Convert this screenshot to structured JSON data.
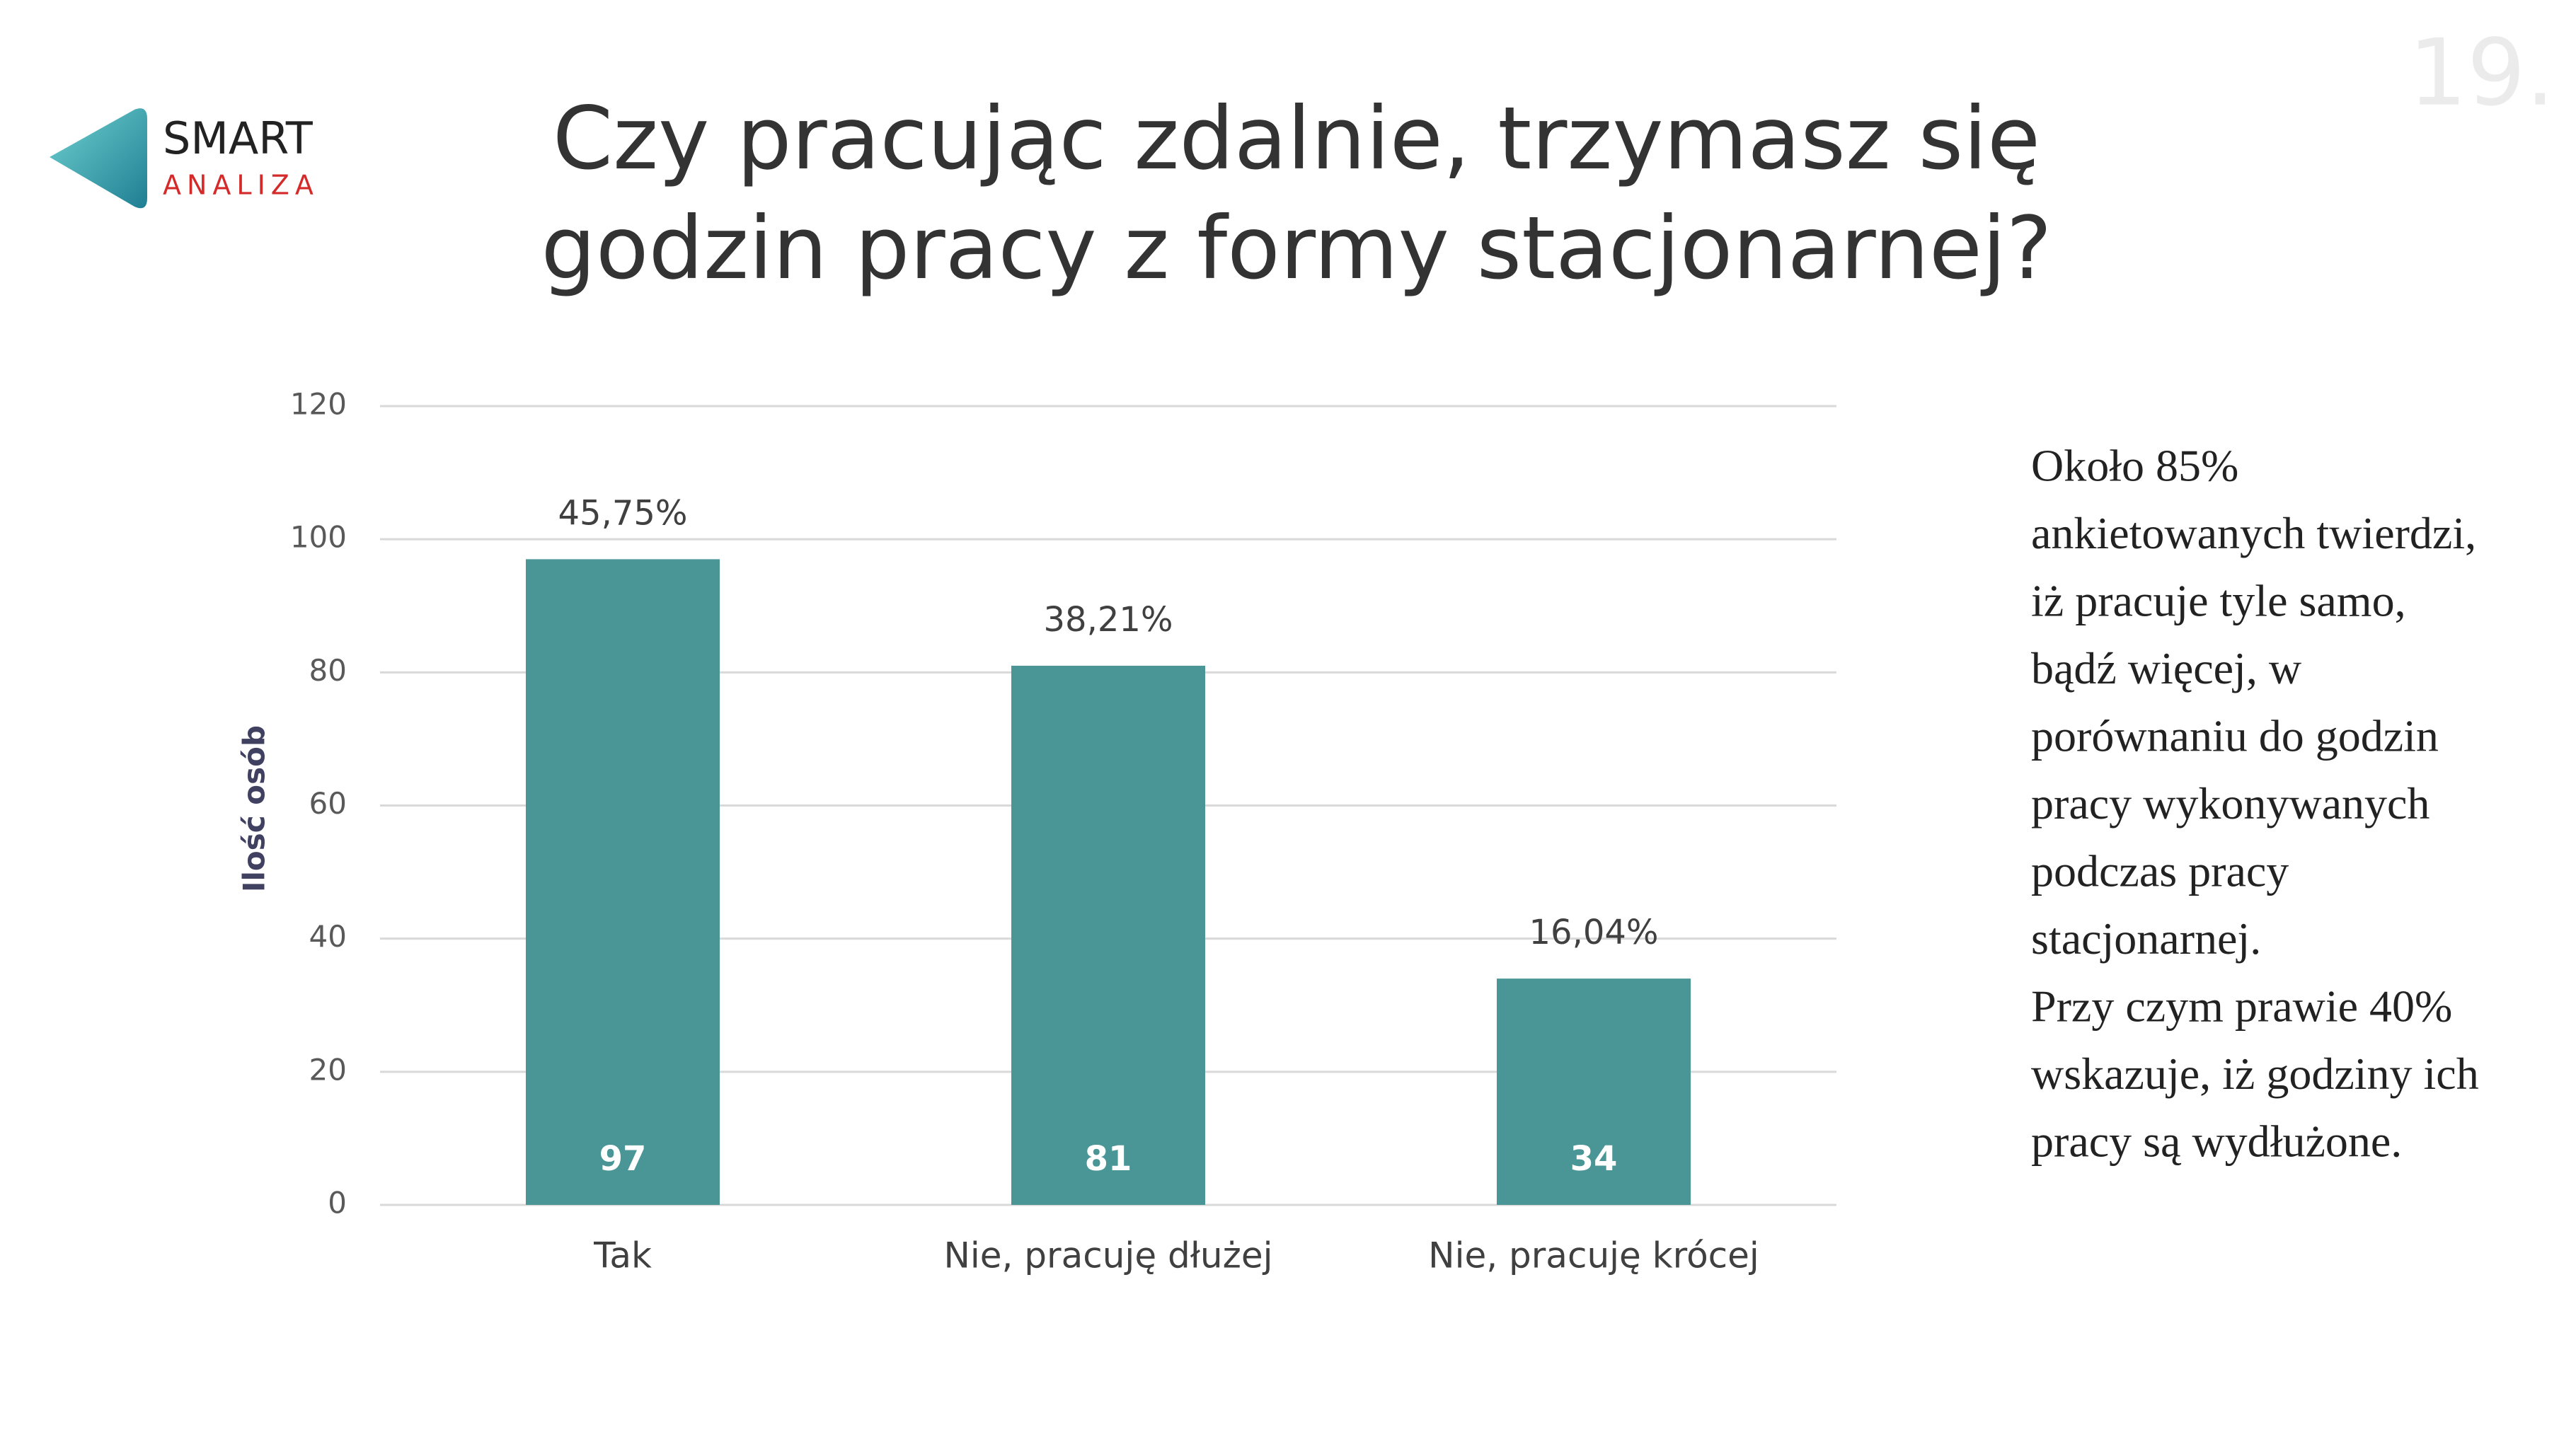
{
  "page_number": "19.",
  "logo": {
    "name": "SMART",
    "subname": "ANALIZA"
  },
  "title_lines": [
    "Czy pracując zdalnie, trzymasz się",
    "godzin pracy z formy stacjonarnej?"
  ],
  "chart_data": {
    "type": "bar",
    "y_label": "Ilość osób",
    "categories": [
      "Tak",
      "Nie, pracuję dłużej",
      "Nie, pracuję krócej"
    ],
    "values": [
      97,
      81,
      34
    ],
    "percent_labels": [
      "45,75%",
      "38,21%",
      "16,04%"
    ],
    "color": "#4a9696",
    "ylim": [
      0,
      120
    ],
    "yticks": [
      0,
      20,
      40,
      60,
      80,
      100,
      120
    ],
    "grid": true
  },
  "note_lines": [
    "Około 85%",
    "ankietowanych twierdzi,",
    "iż pracuje tyle samo,",
    "bądź więcej, w",
    "porównaniu do godzin",
    "pracy wykonywanych",
    "podczas pracy",
    "stacjonarnej.",
    "Przy czym prawie 40%",
    "wskazuje, iż godziny ich",
    "pracy są wydłużone."
  ]
}
